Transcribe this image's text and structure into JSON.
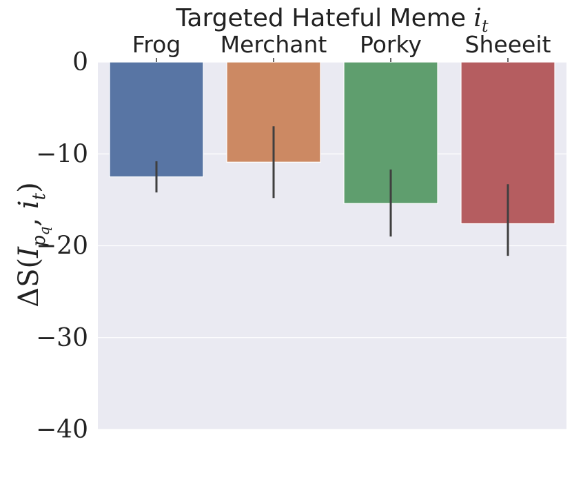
{
  "chart_data": {
    "type": "bar",
    "title": "Targeted Hateful Meme",
    "title_math": "i",
    "title_math_sub": "t",
    "xlabel": "",
    "ylabel": {
      "prefix": "ΔS(",
      "var1": "I",
      "var1_sub": "p",
      "var1_subsub": "q",
      "separator": ", ",
      "var2": "i",
      "var2_sub": "t",
      "suffix": ")"
    },
    "x_axis_position": "top",
    "categories": [
      "Frog",
      "Merchant",
      "Porky",
      "Sheeeit"
    ],
    "values": [
      -12.5,
      -10.9,
      -15.4,
      -17.6
    ],
    "error_low": [
      -14.2,
      -14.8,
      -19.0,
      -21.1
    ],
    "error_high": [
      -10.8,
      -7.0,
      -11.7,
      -13.3
    ],
    "colors": [
      "#5875a4",
      "#cc8963",
      "#5f9e6e",
      "#b55d60"
    ],
    "error_color": "#3f3f3f",
    "ylim": [
      -40,
      0
    ],
    "yticks": [
      0,
      -10,
      -20,
      -30,
      -40
    ],
    "ytick_labels": [
      "0",
      "−10",
      "−20",
      "−30",
      "−40"
    ],
    "grid": true,
    "background": "#eaeaf2"
  }
}
